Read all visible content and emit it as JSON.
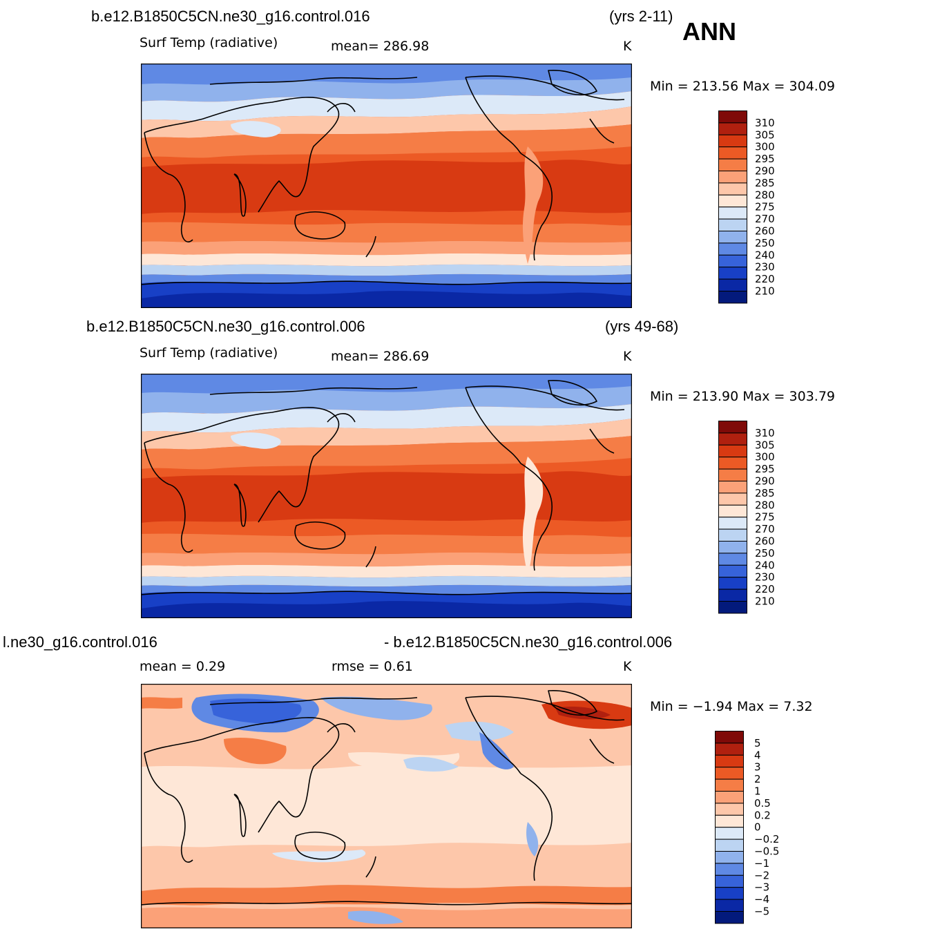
{
  "season": "ANN",
  "panels": [
    {
      "case_title": "b.e12.B1850C5CN.ne30_g16.control.016",
      "years": "(yrs 2-11)",
      "variable": "Surf Temp (radiative)",
      "mean_text": "mean=  286.98",
      "units": "K",
      "minmax_text": "Min  =  213.56  Max  =  304.09",
      "colorbar": {
        "labels": [
          "310",
          "305",
          "300",
          "295",
          "290",
          "285",
          "280",
          "275",
          "270",
          "260",
          "250",
          "240",
          "230",
          "220",
          "210"
        ],
        "colors": [
          "#7f0a08",
          "#b0200f",
          "#d83a12",
          "#ec5a25",
          "#f57d46",
          "#fba178",
          "#fdc7aa",
          "#fee7d7",
          "#dce9f8",
          "#bcd4f2",
          "#90b2ec",
          "#5f89e4",
          "#3763da",
          "#1840c6",
          "#0a28a5",
          "#031a7c"
        ]
      }
    },
    {
      "case_title": "b.e12.B1850C5CN.ne30_g16.control.006",
      "years": "(yrs 49-68)",
      "variable": "Surf Temp (radiative)",
      "mean_text": "mean=  286.69",
      "units": "K",
      "minmax_text": "Min  =  213.90  Max  =  303.79",
      "colorbar": {
        "labels": [
          "310",
          "305",
          "300",
          "295",
          "290",
          "285",
          "280",
          "275",
          "270",
          "260",
          "250",
          "240",
          "230",
          "220",
          "210"
        ],
        "colors": [
          "#7f0a08",
          "#b0200f",
          "#d83a12",
          "#ec5a25",
          "#f57d46",
          "#fba178",
          "#fdc7aa",
          "#fee7d7",
          "#dce9f8",
          "#bcd4f2",
          "#90b2ec",
          "#5f89e4",
          "#3763da",
          "#1840c6",
          "#0a28a5",
          "#031a7c"
        ]
      }
    },
    {
      "case_title_left": "l.ne30_g16.control.016",
      "case_title_right": "- b.e12.B1850C5CN.ne30_g16.control.006",
      "mean_text": "mean  =      0.29",
      "rmse_text": "rmse  =      0.61",
      "units": "K",
      "minmax_text": "Min  =     −1.94  Max  =       7.32",
      "colorbar": {
        "labels": [
          "5",
          "4",
          "3",
          "2",
          "1",
          "0.5",
          "0.2",
          "0",
          "−0.2",
          "−0.5",
          "−1",
          "−2",
          "−3",
          "−4",
          "−5"
        ],
        "colors": [
          "#7f0a08",
          "#b0200f",
          "#d83a12",
          "#ec5a25",
          "#f57d46",
          "#fba178",
          "#fdc7aa",
          "#fee7d7",
          "#dce9f8",
          "#bcd4f2",
          "#90b2ec",
          "#5f89e4",
          "#3763da",
          "#1840c6",
          "#0a28a5",
          "#031a7c"
        ]
      }
    }
  ],
  "map_colors": {
    "deep_blue": "#0a28a5",
    "mid_blue": "#3763da",
    "light_blue": "#90b2ec",
    "pale_blue": "#dce9f8",
    "cream": "#fee7d7",
    "peach": "#fdc7aa",
    "salmon": "#f57d46",
    "orange": "#ec5a25",
    "red_orange": "#d83a12"
  }
}
